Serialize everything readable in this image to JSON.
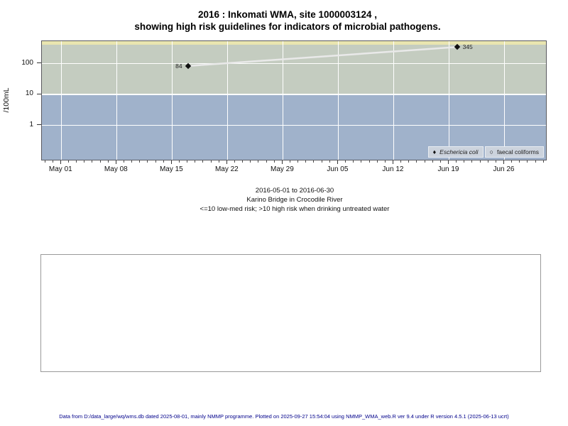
{
  "title": {
    "line1": "2016 : Inkomati WMA, site 1000003124 ,",
    "line2": "showing high risk guidelines for indicators of microbial pathogens."
  },
  "chart_data": {
    "type": "line",
    "title": "2016 : Inkomati WMA, site 1000003124 , showing high risk guidelines for indicators of microbial pathogens.",
    "ylabel": "/100mL",
    "y_scale": "log10",
    "x_epoch": "2016-05-01",
    "x_domain_days": [
      -2.45,
      61.25
    ],
    "y_domain_log": [
      -1.113,
      2.727
    ],
    "grid": "on",
    "legend_position": "bottom-right-inside",
    "y_ticks": [
      {
        "label": "100",
        "value": 100
      },
      {
        "label": "10",
        "value": 10
      },
      {
        "label": "1",
        "value": 1
      }
    ],
    "x_ticks": [
      {
        "label": "May 01",
        "day": 0
      },
      {
        "label": "May 08",
        "day": 7
      },
      {
        "label": "May 15",
        "day": 14
      },
      {
        "label": "May 22",
        "day": 21
      },
      {
        "label": "May 29",
        "day": 28
      },
      {
        "label": "Jun 05",
        "day": 35
      },
      {
        "label": "Jun 12",
        "day": 42
      },
      {
        "label": "Jun 19",
        "day": 49
      },
      {
        "label": "Jun 26",
        "day": 56
      }
    ],
    "zones": [
      {
        "name": "band-above-400",
        "color": "#e9e5b0",
        "from_value": 410,
        "to_value": 535
      },
      {
        "name": "high-risk-above-10",
        "color": "#c4ccc0",
        "from_value": 10,
        "to_value": 410
      },
      {
        "name": "low-med-risk-10-or-less",
        "color": "#a0b2cb",
        "from_value": 0.077,
        "to_value": 10
      }
    ],
    "series": [
      {
        "name": "Eschericia coli",
        "marker": "filled-diamond",
        "line_color": "#e9e9e9",
        "points": [
          {
            "date": "2016-05-17",
            "day": 16,
            "value": 84,
            "label": "84",
            "label_side": "left"
          },
          {
            "date": "2016-06-20",
            "day": 50,
            "value": 345,
            "label": "345",
            "label_side": "right"
          }
        ]
      },
      {
        "name": "faecal coliforms",
        "marker": "open-circle",
        "line_color": "#e9e9e9",
        "points": []
      }
    ],
    "legend": [
      {
        "label": "Eschericia coli",
        "marker": "filled-diamond",
        "italic": true
      },
      {
        "label": "faecal coliforms",
        "marker": "open-circle",
        "italic": false
      }
    ]
  },
  "legend_icons": {
    "filled_diamond": "♦",
    "open_circle": "○"
  },
  "subtitle": {
    "line1": "2016-05-01 to 2016-06-30",
    "line2": "Karino Bridge in Crocodile River",
    "line3": "<=10 low-med risk; >10 high risk when drinking untreated water"
  },
  "footer": "Data from D:/data_large/wq/wms.db dated 2025-08-01, mainly NMMP programme. Plotted on 2025-09-27 15:54:04 using NMMP_WMA_web.R ver 9.4 under R version 4.5.1 (2025-06-13 ucrt)",
  "colors": {
    "gridline": "#ffffff",
    "band_above_400": "#e9e5b0",
    "high_risk_zone": "#c4ccc0",
    "low_med_risk_zone": "#a0b2cb",
    "legend_background": "#ccd3dd",
    "marker": "#111111",
    "series_line": "#e9e9e9",
    "footer_text": "#00008b"
  }
}
